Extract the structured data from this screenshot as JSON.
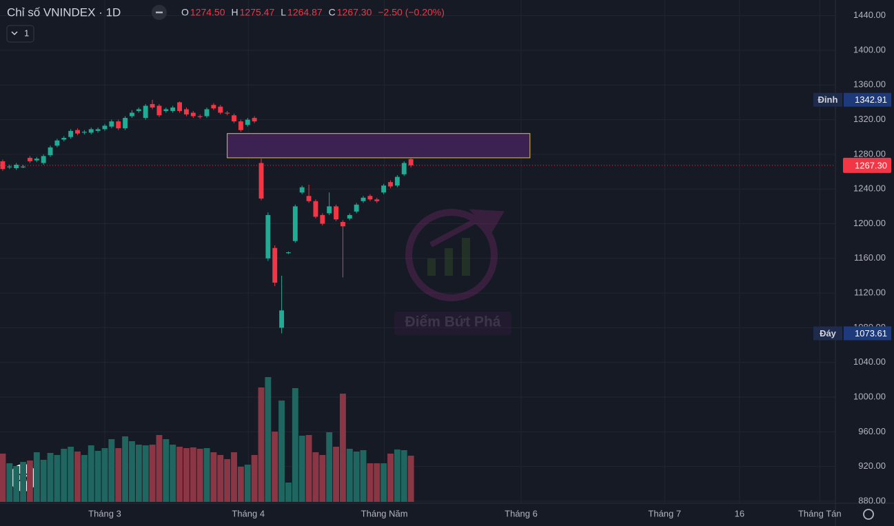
{
  "header": {
    "title": "Chỉ số VNINDEX · 1D",
    "interval": "1",
    "ohlc": [
      {
        "label": "O",
        "value": "1274.50"
      },
      {
        "label": "H",
        "value": "1275.47"
      },
      {
        "label": "L",
        "value": "1264.87"
      },
      {
        "label": "C",
        "value": "1267.30"
      }
    ],
    "change": "−2.50 (−0.20%)"
  },
  "chart_data": {
    "type": "candlestick",
    "up_color": "#22ab94",
    "down_color": "#f23645",
    "volume_up_color": "#1f6660",
    "volume_down_color": "#8a3644",
    "open": [
      1272,
      1265,
      1264,
      1265,
      1276,
      1273,
      1270,
      1279,
      1290,
      1297,
      1300,
      1308,
      1305,
      1305,
      1307,
      1309,
      1312,
      1318,
      1310,
      1324,
      1330,
      1322,
      1338,
      1336,
      1330,
      1330,
      1340,
      1332,
      1328,
      1324,
      1324,
      1337,
      1335,
      1328,
      1325,
      1318,
      1314,
      1322,
      1270,
      1160,
      1172,
      1080,
      1166,
      1180,
      1236,
      1232,
      1226,
      1210,
      1212,
      1220,
      1202,
      1206,
      1214,
      1226,
      1232,
      1228,
      1236,
      1248,
      1244,
      1257,
      1274.5
    ],
    "high": [
      1274,
      1268,
      1270,
      1268,
      1278,
      1277,
      1280,
      1290,
      1298,
      1301,
      1309,
      1310,
      1308,
      1311,
      1311,
      1315,
      1320,
      1320,
      1324,
      1331,
      1334,
      1338,
      1342.91,
      1338,
      1334,
      1336,
      1341,
      1334,
      1330,
      1326,
      1334,
      1339,
      1337,
      1330,
      1327,
      1320,
      1322,
      1324,
      1275,
      1213,
      1175,
      1140,
      1168,
      1222,
      1244,
      1245,
      1228,
      1212,
      1236,
      1222,
      1204,
      1212,
      1224,
      1232,
      1234,
      1230,
      1246,
      1250,
      1256,
      1272,
      1275.47
    ],
    "low": [
      1261,
      1263,
      1262,
      1264,
      1270,
      1271,
      1268,
      1277,
      1288,
      1295,
      1298,
      1302,
      1303,
      1303,
      1305,
      1307,
      1310,
      1308,
      1308,
      1322,
      1328,
      1320,
      1332,
      1323,
      1328,
      1328,
      1328,
      1324,
      1322,
      1321,
      1322,
      1331,
      1326,
      1325,
      1316,
      1306,
      1312,
      1316,
      1227,
      1157,
      1128,
      1073.61,
      1165,
      1178,
      1234,
      1224,
      1206,
      1198,
      1210,
      1203,
      1138,
      1204,
      1212,
      1224,
      1226,
      1224,
      1234,
      1241,
      1242,
      1255,
      1264.87
    ],
    "close": [
      1263,
      1266,
      1268,
      1266,
      1272,
      1275,
      1278,
      1288,
      1296,
      1299,
      1307,
      1304,
      1306,
      1309,
      1309,
      1313,
      1318,
      1310,
      1322,
      1328,
      1332,
      1336,
      1334,
      1325,
      1332,
      1334,
      1330,
      1326,
      1324,
      1323,
      1332,
      1333,
      1328,
      1327,
      1318,
      1308,
      1320,
      1318,
      1229,
      1210,
      1132,
      1100,
      1167,
      1220,
      1242,
      1226,
      1208,
      1200,
      1220,
      1205,
      1197,
      1210,
      1222,
      1230,
      1228,
      1226,
      1244,
      1243,
      1254,
      1270,
      1267.3
    ],
    "volume": [
      70,
      56,
      52,
      58,
      60,
      72,
      61,
      71,
      68,
      77,
      80,
      73,
      68,
      82,
      74,
      78,
      91,
      78,
      95,
      88,
      83,
      82,
      83,
      97,
      91,
      83,
      80,
      78,
      79,
      77,
      78,
      72,
      68,
      62,
      72,
      51,
      54,
      68,
      166,
      181,
      102,
      147,
      28,
      165,
      96,
      97,
      72,
      68,
      101,
      80,
      157,
      77,
      73,
      75,
      56,
      56,
      56,
      70,
      76,
      75,
      67
    ],
    "xlim": [
      -0.4,
      122.4
    ],
    "xticks": [
      {
        "value": 15,
        "label": "Tháng 3"
      },
      {
        "value": 36.1,
        "label": "Tháng 4"
      },
      {
        "value": 56.1,
        "label": "Tháng Năm"
      },
      {
        "value": 76.2,
        "label": "Tháng 6"
      },
      {
        "value": 97.3,
        "label": "Tháng 7"
      },
      {
        "value": 108.3,
        "label": "16"
      },
      {
        "value": 120.1,
        "label": "Tháng Tán"
      }
    ],
    "ylim": [
      877.6,
      1458
    ],
    "yticks": [
      {
        "value": 880,
        "label": "880.00"
      },
      {
        "value": 920,
        "label": "920.00"
      },
      {
        "value": 960,
        "label": "960.00"
      },
      {
        "value": 1000,
        "label": "1000.00"
      },
      {
        "value": 1040,
        "label": "1040.00"
      },
      {
        "value": 1080,
        "label": "1080.00"
      },
      {
        "value": 1120,
        "label": "1120.00"
      },
      {
        "value": 1160,
        "label": "1160.00"
      },
      {
        "value": 1200,
        "label": "1200.00"
      },
      {
        "value": 1240,
        "label": "1240.00"
      },
      {
        "value": 1280,
        "label": "1280.00"
      },
      {
        "value": 1320,
        "label": "1320.00"
      },
      {
        "value": 1360,
        "label": "1360.00"
      },
      {
        "value": 1400,
        "label": "1400.00"
      },
      {
        "value": 1440,
        "label": "1440.00"
      }
    ],
    "grid": true,
    "price_line": {
      "value": 1267.3,
      "label": "1267.30"
    },
    "zone": {
      "x": [
        33,
        77.5
      ],
      "y": [
        1276,
        1304
      ]
    },
    "markers": [
      {
        "label": "Đỉnh",
        "value": 1342.91
      },
      {
        "label": "Đáy",
        "value": 1073.61
      }
    ],
    "watermark": "Điểm Bứt Phá"
  }
}
